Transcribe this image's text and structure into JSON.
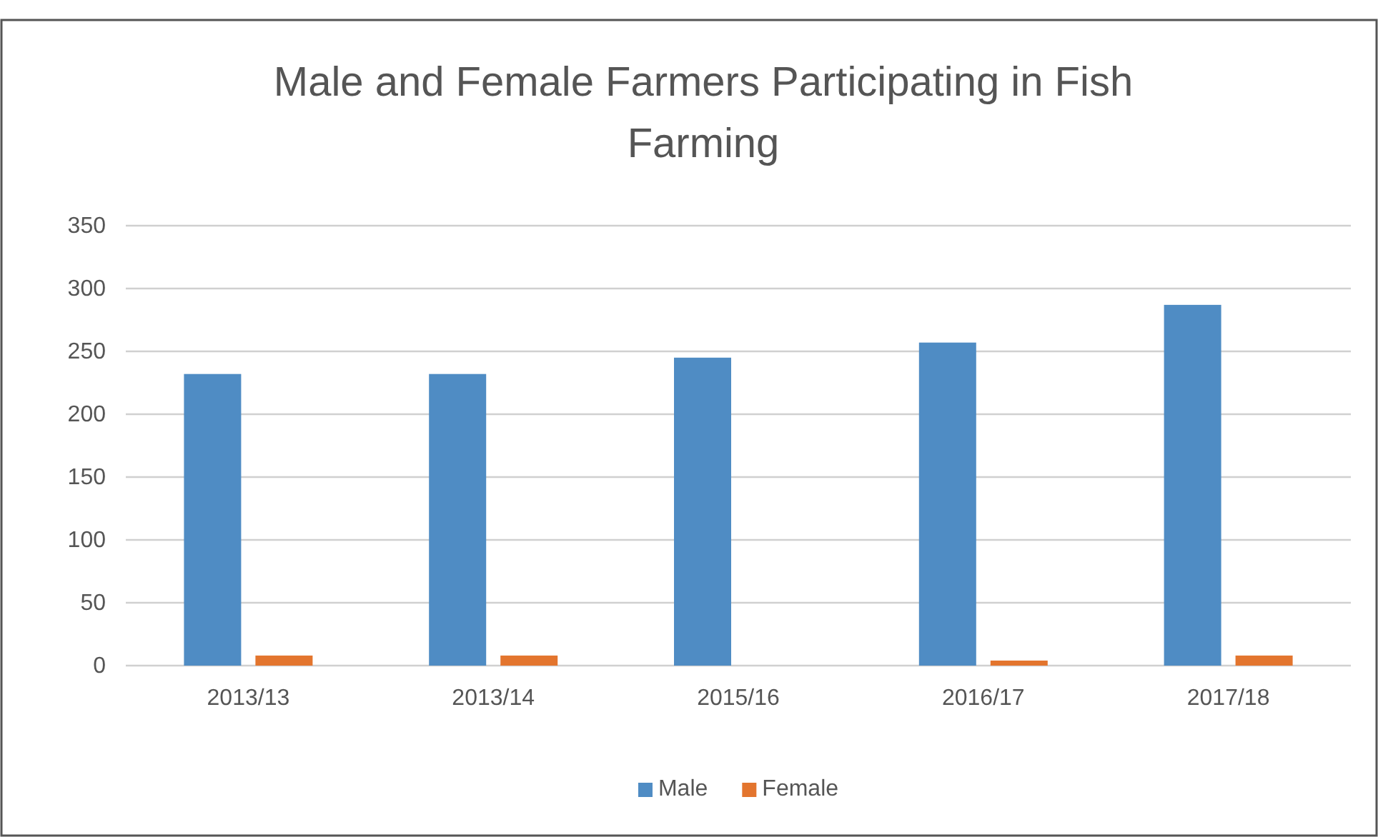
{
  "chart_data": {
    "type": "bar",
    "title": "Male and Female Farmers Participating in Fish Farming",
    "categories": [
      "2013/13",
      "2013/14",
      "2015/16",
      "2016/17",
      "2017/18"
    ],
    "series": [
      {
        "name": "Male",
        "color": "#4f8cc4",
        "values": [
          232,
          232,
          245,
          257,
          287
        ]
      },
      {
        "name": "Female",
        "color": "#e3752e",
        "values": [
          8,
          8,
          0,
          4,
          8
        ]
      }
    ],
    "ylim": [
      0,
      350
    ],
    "yticks": [
      0,
      50,
      100,
      150,
      200,
      250,
      300,
      350
    ],
    "grid": "y",
    "legend": "bottom"
  }
}
